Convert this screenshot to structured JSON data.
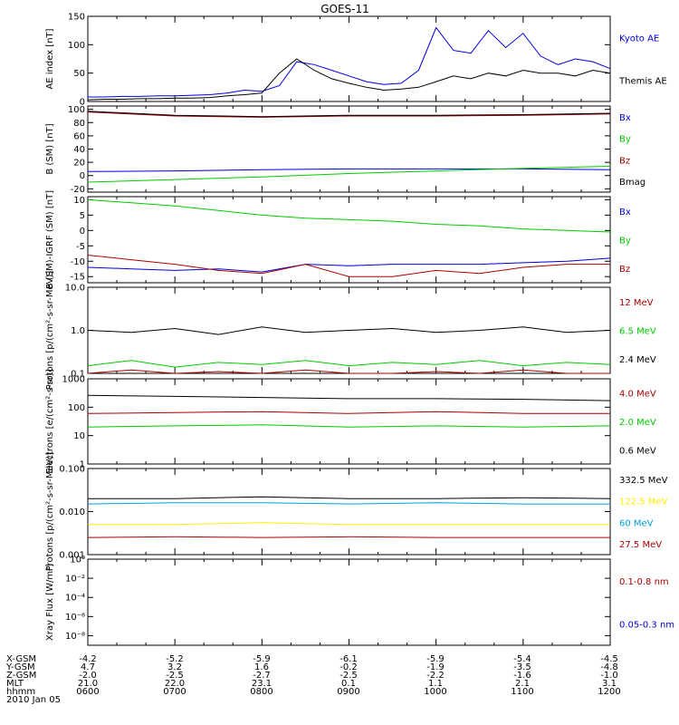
{
  "title": "GOES-11",
  "time_axis": {
    "tick_labels": [
      "0600",
      "0700",
      "0800",
      "0900",
      "1000",
      "1100",
      "1200"
    ],
    "date": "2010 Jan 05"
  },
  "orbit_table": {
    "rows": [
      {
        "label": "X-GSM",
        "values": [
          "-4.2",
          "-5.2",
          "-5.9",
          "-6.1",
          "-5.9",
          "-5.4",
          "-4.5"
        ]
      },
      {
        "label": "Y-GSM",
        "values": [
          "4.7",
          "3.2",
          "1.6",
          "-0.2",
          "-1.9",
          "-3.5",
          "-4.8"
        ]
      },
      {
        "label": "Z-GSM",
        "values": [
          "-2.0",
          "-2.5",
          "-2.7",
          "-2.5",
          "-2.2",
          "-1.6",
          "-1.0"
        ]
      },
      {
        "label": "MLT",
        "values": [
          "21.0",
          "22.0",
          "23.1",
          "0.1",
          "1.1",
          "2.1",
          "3.1"
        ]
      },
      {
        "label": "hhmm",
        "values": [
          "0600",
          "0700",
          "0800",
          "0900",
          "1000",
          "1100",
          "1200"
        ]
      }
    ]
  },
  "chart_data": [
    {
      "type": "line",
      "ylabel": "AE index [nT]",
      "ylim": [
        0,
        150
      ],
      "yscale": "linear",
      "yticks": [
        "0",
        "50",
        "100",
        "150"
      ],
      "ytick_values": [
        0,
        50,
        100,
        150
      ],
      "x": [
        6.0,
        6.2,
        6.4,
        6.6,
        6.8,
        7.0,
        7.2,
        7.4,
        7.6,
        7.8,
        8.0,
        8.2,
        8.4,
        8.6,
        8.8,
        9.0,
        9.2,
        9.4,
        9.6,
        9.8,
        10.0,
        10.2,
        10.4,
        10.6,
        10.8,
        11.0,
        11.2,
        11.4,
        11.6,
        11.8,
        12.0
      ],
      "series": [
        {
          "name": "Kyoto AE",
          "color": "#0000dd",
          "values": [
            8,
            8,
            9,
            9,
            10,
            10,
            11,
            12,
            15,
            20,
            18,
            28,
            70,
            65,
            55,
            45,
            35,
            30,
            32,
            55,
            130,
            90,
            85,
            125,
            95,
            120,
            80,
            65,
            75,
            70,
            58
          ]
        },
        {
          "name": "Themis AE",
          "color": "#000000",
          "values": [
            3,
            4,
            4,
            5,
            5,
            6,
            6,
            7,
            10,
            12,
            15,
            50,
            75,
            55,
            40,
            32,
            25,
            20,
            22,
            25,
            35,
            45,
            40,
            50,
            45,
            55,
            50,
            50,
            45,
            55,
            50
          ]
        }
      ]
    },
    {
      "type": "line",
      "ylabel": "B (SM) [nT]",
      "ylim": [
        -25,
        105
      ],
      "yscale": "linear",
      "yticks": [
        "-20",
        "0",
        "20",
        "40",
        "60",
        "80",
        "100"
      ],
      "ytick_values": [
        -20,
        0,
        20,
        40,
        60,
        80,
        100
      ],
      "x": [
        6.0,
        7.0,
        8.0,
        9.0,
        10.0,
        11.0,
        12.0
      ],
      "series": [
        {
          "name": "Bx",
          "color": "#0000dd",
          "values": [
            6,
            7,
            9,
            10,
            10,
            10,
            9
          ]
        },
        {
          "name": "By",
          "color": "#00cc00",
          "values": [
            -10,
            -6,
            -2,
            3,
            7,
            11,
            14
          ]
        },
        {
          "name": "Bz",
          "color": "#aa0000",
          "values": [
            96,
            90,
            88,
            90,
            90,
            91,
            93
          ]
        },
        {
          "name": "Bmag",
          "color": "#000000",
          "values": [
            97,
            91,
            89,
            91,
            91,
            92,
            94
          ]
        }
      ]
    },
    {
      "type": "line",
      "ylabel": "B (SM)-IGRF (SM) [nT]",
      "ylim": [
        -17,
        11
      ],
      "yscale": "linear",
      "yticks": [
        "-15",
        "-10",
        "-5",
        "0",
        "5",
        "10"
      ],
      "ytick_values": [
        -15,
        -10,
        -5,
        0,
        5,
        10
      ],
      "x": [
        6.0,
        6.5,
        7.0,
        7.5,
        8.0,
        8.5,
        9.0,
        9.5,
        10.0,
        10.5,
        11.0,
        11.5,
        12.0
      ],
      "series": [
        {
          "name": "Bx",
          "color": "#0000dd",
          "values": [
            -12,
            -12.5,
            -13,
            -12.5,
            -13.5,
            -11,
            -11.5,
            -11,
            -11,
            -11,
            -10.5,
            -10,
            -9
          ]
        },
        {
          "name": "By",
          "color": "#00cc00",
          "values": [
            10,
            9,
            8,
            6.5,
            5,
            4,
            3.5,
            3,
            2,
            1.5,
            0.5,
            0,
            -0.5
          ]
        },
        {
          "name": "Bz",
          "color": "#aa0000",
          "values": [
            -8,
            -9.5,
            -11,
            -13,
            -14,
            -11,
            -15,
            -15,
            -13,
            -14,
            -12,
            -11,
            -11
          ]
        }
      ]
    },
    {
      "type": "line",
      "ylabel": "Protons [p/(cm²-s-sr-MeV)]",
      "ylim": [
        0.1,
        10
      ],
      "yscale": "log",
      "yticks": [
        "0.1",
        "1.0",
        "10.0"
      ],
      "ytick_values": [
        0.1,
        1,
        10
      ],
      "x": [
        6.0,
        6.5,
        7.0,
        7.5,
        8.0,
        8.5,
        9.0,
        9.5,
        10.0,
        10.5,
        11.0,
        11.5,
        12.0
      ],
      "series": [
        {
          "name": "12 MeV",
          "color": "#aa0000",
          "values": [
            0.1,
            0.12,
            0.1,
            0.11,
            0.1,
            0.12,
            0.1,
            0.1,
            0.11,
            0.1,
            0.12,
            0.1,
            0.1
          ]
        },
        {
          "name": "6.5 MeV",
          "color": "#00cc00",
          "values": [
            0.15,
            0.2,
            0.14,
            0.18,
            0.16,
            0.2,
            0.15,
            0.18,
            0.16,
            0.2,
            0.15,
            0.18,
            0.16
          ]
        },
        {
          "name": "2.4 MeV",
          "color": "#000000",
          "values": [
            1.0,
            0.9,
            1.1,
            0.8,
            1.2,
            0.9,
            1.0,
            1.1,
            0.9,
            1.0,
            1.2,
            0.9,
            1.0
          ]
        }
      ]
    },
    {
      "type": "line",
      "ylabel": "Electrons [e/(cm²-s-sr)]",
      "ylim": [
        1,
        1000
      ],
      "yscale": "log",
      "yticks": [
        "1",
        "10",
        "100",
        "1000"
      ],
      "ytick_values": [
        1,
        10,
        100,
        1000
      ],
      "x": [
        6.0,
        7.0,
        8.0,
        9.0,
        10.0,
        11.0,
        12.0
      ],
      "series": [
        {
          "name": "4.0 MeV",
          "color": "#aa0000",
          "values": [
            60,
            65,
            70,
            60,
            70,
            60,
            60
          ]
        },
        {
          "name": "2.0 MeV",
          "color": "#00cc00",
          "values": [
            20,
            22,
            24,
            20,
            22,
            20,
            22
          ]
        },
        {
          "name": "0.6 MeV",
          "color": "#000000",
          "values": [
            260,
            240,
            220,
            200,
            200,
            190,
            170
          ]
        }
      ]
    },
    {
      "type": "line",
      "ylabel": "Protons [p/(cm²-s-sr-MeV)]",
      "ylim": [
        0.001,
        0.1
      ],
      "yscale": "log",
      "yticks": [
        "0.001",
        "0.010",
        "0.100"
      ],
      "ytick_values": [
        0.001,
        0.01,
        0.1
      ],
      "x": [
        6.0,
        7.0,
        8.0,
        9.0,
        10.0,
        11.0,
        12.0
      ],
      "series": [
        {
          "name": "332.5 MeV",
          "color": "#000000",
          "values": [
            0.02,
            0.02,
            0.022,
            0.02,
            0.02,
            0.021,
            0.02
          ]
        },
        {
          "name": "122.5 MeV",
          "color": "#ffee00",
          "values": [
            0.005,
            0.005,
            0.0055,
            0.005,
            0.005,
            0.005,
            0.005
          ]
        },
        {
          "name": "60 MeV",
          "color": "#00a0e0",
          "values": [
            0.015,
            0.016,
            0.016,
            0.015,
            0.016,
            0.015,
            0.015
          ]
        },
        {
          "name": "27.5 MeV",
          "color": "#aa0000",
          "values": [
            0.0025,
            0.0026,
            0.0025,
            0.0026,
            0.0025,
            0.0025,
            0.0025
          ]
        }
      ]
    },
    {
      "type": "line",
      "ylabel": "Xray Flux [W/m²]",
      "ylim": [
        1e-09,
        1
      ],
      "yscale": "log",
      "yticks": [
        "10⁻⁸",
        "10⁻⁶",
        "10⁻⁴",
        "10⁻²",
        "10⁰"
      ],
      "ytick_values": [
        1e-08,
        1e-06,
        0.0001,
        0.01,
        1
      ],
      "series": [
        {
          "name": "0.1-0.8 nm",
          "color": "#aa0000",
          "values": []
        },
        {
          "name": "0.05-0.3 nm",
          "color": "#0000dd",
          "values": []
        }
      ]
    }
  ]
}
